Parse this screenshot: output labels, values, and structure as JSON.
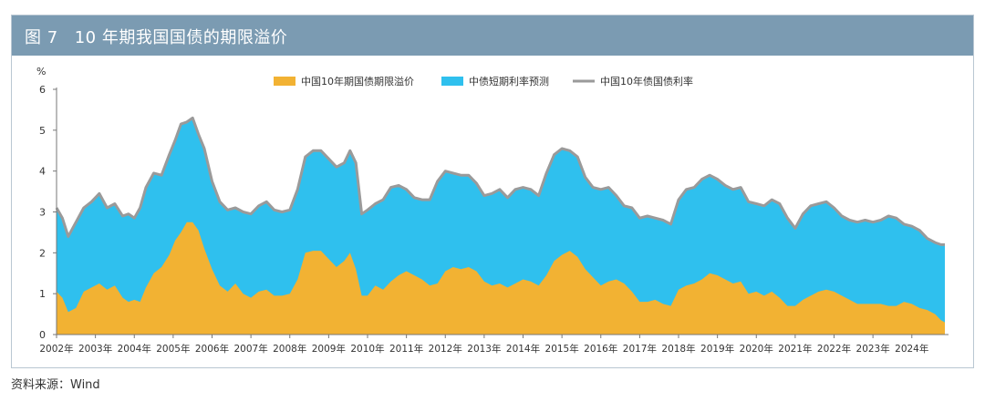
{
  "figure": {
    "number": "图 7",
    "title": "10 年期我国国债的期限溢价"
  },
  "source": "资料来源：Wind",
  "colors": {
    "header_bg": "#7b9bb2",
    "term_premium": "#f2b233",
    "short_rate_expect": "#2fc0ee",
    "yield_line": "#9a9a9a"
  },
  "chart_data": {
    "type": "area",
    "title": "",
    "ylabel": "%",
    "ylim": [
      0,
      6
    ],
    "yticks": [
      0,
      1,
      2,
      3,
      4,
      5,
      6
    ],
    "xlim": [
      2002.0,
      2024.85
    ],
    "xticks": [
      "2002年",
      "2003年",
      "2004年",
      "2005年",
      "2006年",
      "2007年",
      "2008年",
      "2009年",
      "2010年",
      "2011年",
      "2012年",
      "2013年",
      "2014年",
      "2015年",
      "2016年",
      "2017年",
      "2018年",
      "2019年",
      "2020年",
      "2021年",
      "2022年",
      "2023年",
      "2024年"
    ],
    "legend_position": "top",
    "stacked": true,
    "series": [
      {
        "name": "中国10年期国债期限溢价",
        "style": "area",
        "points": [
          [
            2002.0,
            1.05
          ],
          [
            2002.15,
            0.9
          ],
          [
            2002.3,
            0.55
          ],
          [
            2002.5,
            0.65
          ],
          [
            2002.7,
            1.05
          ],
          [
            2002.9,
            1.15
          ],
          [
            2003.1,
            1.25
          ],
          [
            2003.3,
            1.1
          ],
          [
            2003.5,
            1.2
          ],
          [
            2003.7,
            0.9
          ],
          [
            2003.85,
            0.8
          ],
          [
            2004.0,
            0.85
          ],
          [
            2004.15,
            0.8
          ],
          [
            2004.3,
            1.15
          ],
          [
            2004.5,
            1.5
          ],
          [
            2004.7,
            1.65
          ],
          [
            2004.9,
            1.95
          ],
          [
            2005.05,
            2.3
          ],
          [
            2005.2,
            2.5
          ],
          [
            2005.35,
            2.75
          ],
          [
            2005.5,
            2.75
          ],
          [
            2005.65,
            2.55
          ],
          [
            2005.8,
            2.1
          ],
          [
            2006.0,
            1.6
          ],
          [
            2006.2,
            1.2
          ],
          [
            2006.4,
            1.05
          ],
          [
            2006.6,
            1.25
          ],
          [
            2006.8,
            1.0
          ],
          [
            2007.0,
            0.9
          ],
          [
            2007.2,
            1.05
          ],
          [
            2007.4,
            1.1
          ],
          [
            2007.6,
            0.95
          ],
          [
            2007.8,
            0.95
          ],
          [
            2008.0,
            1.0
          ],
          [
            2008.2,
            1.35
          ],
          [
            2008.4,
            2.0
          ],
          [
            2008.6,
            2.05
          ],
          [
            2008.8,
            2.05
          ],
          [
            2009.0,
            1.85
          ],
          [
            2009.2,
            1.65
          ],
          [
            2009.4,
            1.8
          ],
          [
            2009.55,
            2.0
          ],
          [
            2009.7,
            1.6
          ],
          [
            2009.85,
            0.95
          ],
          [
            2010.0,
            0.95
          ],
          [
            2010.2,
            1.2
          ],
          [
            2010.4,
            1.1
          ],
          [
            2010.6,
            1.3
          ],
          [
            2010.8,
            1.45
          ],
          [
            2011.0,
            1.55
          ],
          [
            2011.2,
            1.45
          ],
          [
            2011.4,
            1.35
          ],
          [
            2011.6,
            1.2
          ],
          [
            2011.8,
            1.25
          ],
          [
            2012.0,
            1.55
          ],
          [
            2012.2,
            1.65
          ],
          [
            2012.4,
            1.6
          ],
          [
            2012.6,
            1.65
          ],
          [
            2012.8,
            1.55
          ],
          [
            2013.0,
            1.3
          ],
          [
            2013.2,
            1.2
          ],
          [
            2013.4,
            1.25
          ],
          [
            2013.6,
            1.15
          ],
          [
            2013.8,
            1.25
          ],
          [
            2014.0,
            1.35
          ],
          [
            2014.2,
            1.3
          ],
          [
            2014.4,
            1.2
          ],
          [
            2014.6,
            1.45
          ],
          [
            2014.8,
            1.8
          ],
          [
            2015.0,
            1.95
          ],
          [
            2015.2,
            2.05
          ],
          [
            2015.4,
            1.9
          ],
          [
            2015.6,
            1.6
          ],
          [
            2015.8,
            1.4
          ],
          [
            2016.0,
            1.2
          ],
          [
            2016.2,
            1.3
          ],
          [
            2016.4,
            1.35
          ],
          [
            2016.6,
            1.25
          ],
          [
            2016.8,
            1.05
          ],
          [
            2017.0,
            0.8
          ],
          [
            2017.2,
            0.8
          ],
          [
            2017.4,
            0.85
          ],
          [
            2017.6,
            0.75
          ],
          [
            2017.8,
            0.7
          ],
          [
            2018.0,
            1.1
          ],
          [
            2018.2,
            1.2
          ],
          [
            2018.4,
            1.25
          ],
          [
            2018.6,
            1.35
          ],
          [
            2018.8,
            1.5
          ],
          [
            2019.0,
            1.45
          ],
          [
            2019.2,
            1.35
          ],
          [
            2019.4,
            1.25
          ],
          [
            2019.6,
            1.3
          ],
          [
            2019.8,
            1.0
          ],
          [
            2020.0,
            1.05
          ],
          [
            2020.2,
            0.95
          ],
          [
            2020.4,
            1.05
          ],
          [
            2020.6,
            0.9
          ],
          [
            2020.8,
            0.7
          ],
          [
            2021.0,
            0.7
          ],
          [
            2021.2,
            0.85
          ],
          [
            2021.4,
            0.95
          ],
          [
            2021.6,
            1.05
          ],
          [
            2021.8,
            1.1
          ],
          [
            2022.0,
            1.05
          ],
          [
            2022.2,
            0.95
          ],
          [
            2022.4,
            0.85
          ],
          [
            2022.6,
            0.75
          ],
          [
            2022.8,
            0.75
          ],
          [
            2023.0,
            0.75
          ],
          [
            2023.2,
            0.75
          ],
          [
            2023.4,
            0.7
          ],
          [
            2023.6,
            0.7
          ],
          [
            2023.8,
            0.8
          ],
          [
            2024.0,
            0.75
          ],
          [
            2024.2,
            0.65
          ],
          [
            2024.4,
            0.6
          ],
          [
            2024.6,
            0.5
          ],
          [
            2024.75,
            0.35
          ],
          [
            2024.85,
            0.3
          ]
        ]
      },
      {
        "name": "中债短期利率预测",
        "style": "area"
      },
      {
        "name": "中国10年债国债利率",
        "style": "line",
        "points": [
          [
            2002.0,
            3.1
          ],
          [
            2002.15,
            2.85
          ],
          [
            2002.3,
            2.4
          ],
          [
            2002.5,
            2.75
          ],
          [
            2002.7,
            3.1
          ],
          [
            2002.9,
            3.25
          ],
          [
            2003.1,
            3.45
          ],
          [
            2003.3,
            3.1
          ],
          [
            2003.5,
            3.2
          ],
          [
            2003.7,
            2.9
          ],
          [
            2003.85,
            2.95
          ],
          [
            2004.0,
            2.85
          ],
          [
            2004.15,
            3.1
          ],
          [
            2004.3,
            3.6
          ],
          [
            2004.5,
            3.95
          ],
          [
            2004.7,
            3.9
          ],
          [
            2004.9,
            4.4
          ],
          [
            2005.05,
            4.75
          ],
          [
            2005.2,
            5.15
          ],
          [
            2005.35,
            5.2
          ],
          [
            2005.5,
            5.3
          ],
          [
            2005.65,
            4.9
          ],
          [
            2005.8,
            4.55
          ],
          [
            2006.0,
            3.75
          ],
          [
            2006.2,
            3.25
          ],
          [
            2006.4,
            3.05
          ],
          [
            2006.6,
            3.1
          ],
          [
            2006.8,
            3.0
          ],
          [
            2007.0,
            2.95
          ],
          [
            2007.2,
            3.15
          ],
          [
            2007.4,
            3.25
          ],
          [
            2007.6,
            3.05
          ],
          [
            2007.8,
            3.0
          ],
          [
            2008.0,
            3.05
          ],
          [
            2008.2,
            3.55
          ],
          [
            2008.4,
            4.35
          ],
          [
            2008.6,
            4.5
          ],
          [
            2008.8,
            4.5
          ],
          [
            2009.0,
            4.3
          ],
          [
            2009.2,
            4.1
          ],
          [
            2009.4,
            4.2
          ],
          [
            2009.55,
            4.5
          ],
          [
            2009.7,
            4.2
          ],
          [
            2009.85,
            2.95
          ],
          [
            2010.0,
            3.05
          ],
          [
            2010.2,
            3.2
          ],
          [
            2010.4,
            3.3
          ],
          [
            2010.6,
            3.6
          ],
          [
            2010.8,
            3.65
          ],
          [
            2011.0,
            3.55
          ],
          [
            2011.2,
            3.35
          ],
          [
            2011.4,
            3.3
          ],
          [
            2011.6,
            3.3
          ],
          [
            2011.8,
            3.75
          ],
          [
            2012.0,
            4.0
          ],
          [
            2012.2,
            3.95
          ],
          [
            2012.4,
            3.9
          ],
          [
            2012.6,
            3.9
          ],
          [
            2012.8,
            3.7
          ],
          [
            2013.0,
            3.4
          ],
          [
            2013.2,
            3.45
          ],
          [
            2013.4,
            3.55
          ],
          [
            2013.6,
            3.35
          ],
          [
            2013.8,
            3.55
          ],
          [
            2014.0,
            3.6
          ],
          [
            2014.2,
            3.55
          ],
          [
            2014.4,
            3.4
          ],
          [
            2014.6,
            3.95
          ],
          [
            2014.8,
            4.4
          ],
          [
            2015.0,
            4.55
          ],
          [
            2015.2,
            4.5
          ],
          [
            2015.4,
            4.35
          ],
          [
            2015.6,
            3.85
          ],
          [
            2015.8,
            3.6
          ],
          [
            2016.0,
            3.55
          ],
          [
            2016.2,
            3.6
          ],
          [
            2016.4,
            3.4
          ],
          [
            2016.6,
            3.15
          ],
          [
            2016.8,
            3.1
          ],
          [
            2017.0,
            2.85
          ],
          [
            2017.2,
            2.9
          ],
          [
            2017.4,
            2.85
          ],
          [
            2017.6,
            2.8
          ],
          [
            2017.8,
            2.7
          ],
          [
            2018.0,
            3.3
          ],
          [
            2018.2,
            3.55
          ],
          [
            2018.4,
            3.6
          ],
          [
            2018.6,
            3.8
          ],
          [
            2018.8,
            3.9
          ],
          [
            2019.0,
            3.8
          ],
          [
            2019.2,
            3.65
          ],
          [
            2019.4,
            3.55
          ],
          [
            2019.6,
            3.6
          ],
          [
            2019.8,
            3.25
          ],
          [
            2020.0,
            3.2
          ],
          [
            2020.2,
            3.15
          ],
          [
            2020.4,
            3.3
          ],
          [
            2020.6,
            3.2
          ],
          [
            2020.8,
            2.85
          ],
          [
            2021.0,
            2.6
          ],
          [
            2021.2,
            2.95
          ],
          [
            2021.4,
            3.15
          ],
          [
            2021.6,
            3.2
          ],
          [
            2021.8,
            3.25
          ],
          [
            2022.0,
            3.1
          ],
          [
            2022.2,
            2.9
          ],
          [
            2022.4,
            2.8
          ],
          [
            2022.6,
            2.75
          ],
          [
            2022.8,
            2.8
          ],
          [
            2023.0,
            2.75
          ],
          [
            2023.2,
            2.8
          ],
          [
            2023.4,
            2.9
          ],
          [
            2023.6,
            2.85
          ],
          [
            2023.8,
            2.7
          ],
          [
            2024.0,
            2.65
          ],
          [
            2024.2,
            2.55
          ],
          [
            2024.4,
            2.35
          ],
          [
            2024.6,
            2.25
          ],
          [
            2024.75,
            2.2
          ],
          [
            2024.85,
            2.2
          ]
        ]
      }
    ]
  }
}
